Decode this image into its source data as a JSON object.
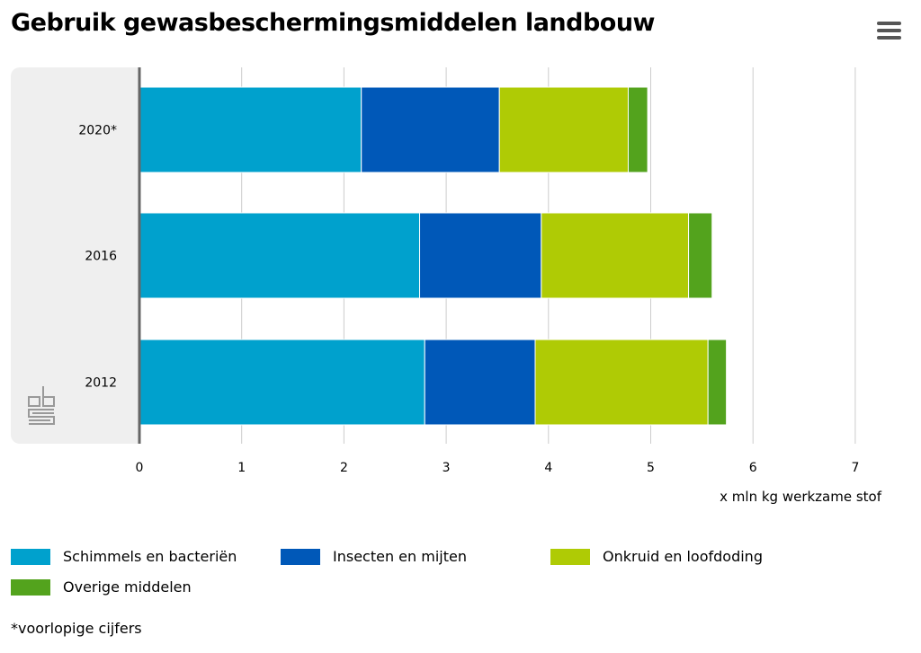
{
  "chart_data": {
    "type": "bar",
    "orientation": "horizontal",
    "stacked": true,
    "title": "Gebruik gewasbeschermingsmiddelen landbouw",
    "categories": [
      "2020*",
      "2016",
      "2012"
    ],
    "series": [
      {
        "name": "Schimmels en bacteriën",
        "color": "#00a1cd",
        "values": [
          2.17,
          2.74,
          2.79
        ]
      },
      {
        "name": "Insecten en mijten",
        "color": "#0058b8",
        "values": [
          1.35,
          1.19,
          1.08
        ]
      },
      {
        "name": "Onkruid en loofdoding",
        "color": "#afcb05",
        "values": [
          1.26,
          1.44,
          1.69
        ]
      },
      {
        "name": "Overige middelen",
        "color": "#53a31d",
        "values": [
          0.19,
          0.23,
          0.18
        ]
      }
    ],
    "xlabel": "x mln kg werkzame stof",
    "xlim": [
      0,
      7.5
    ],
    "xticks": [
      "0",
      "1",
      "2",
      "3",
      "4",
      "5",
      "6",
      "7"
    ],
    "grid": true,
    "legend": "bottom",
    "note": "*voorlopige cijfers"
  },
  "menu_icon": "hamburger-menu-icon",
  "logo": "cbs-logo"
}
